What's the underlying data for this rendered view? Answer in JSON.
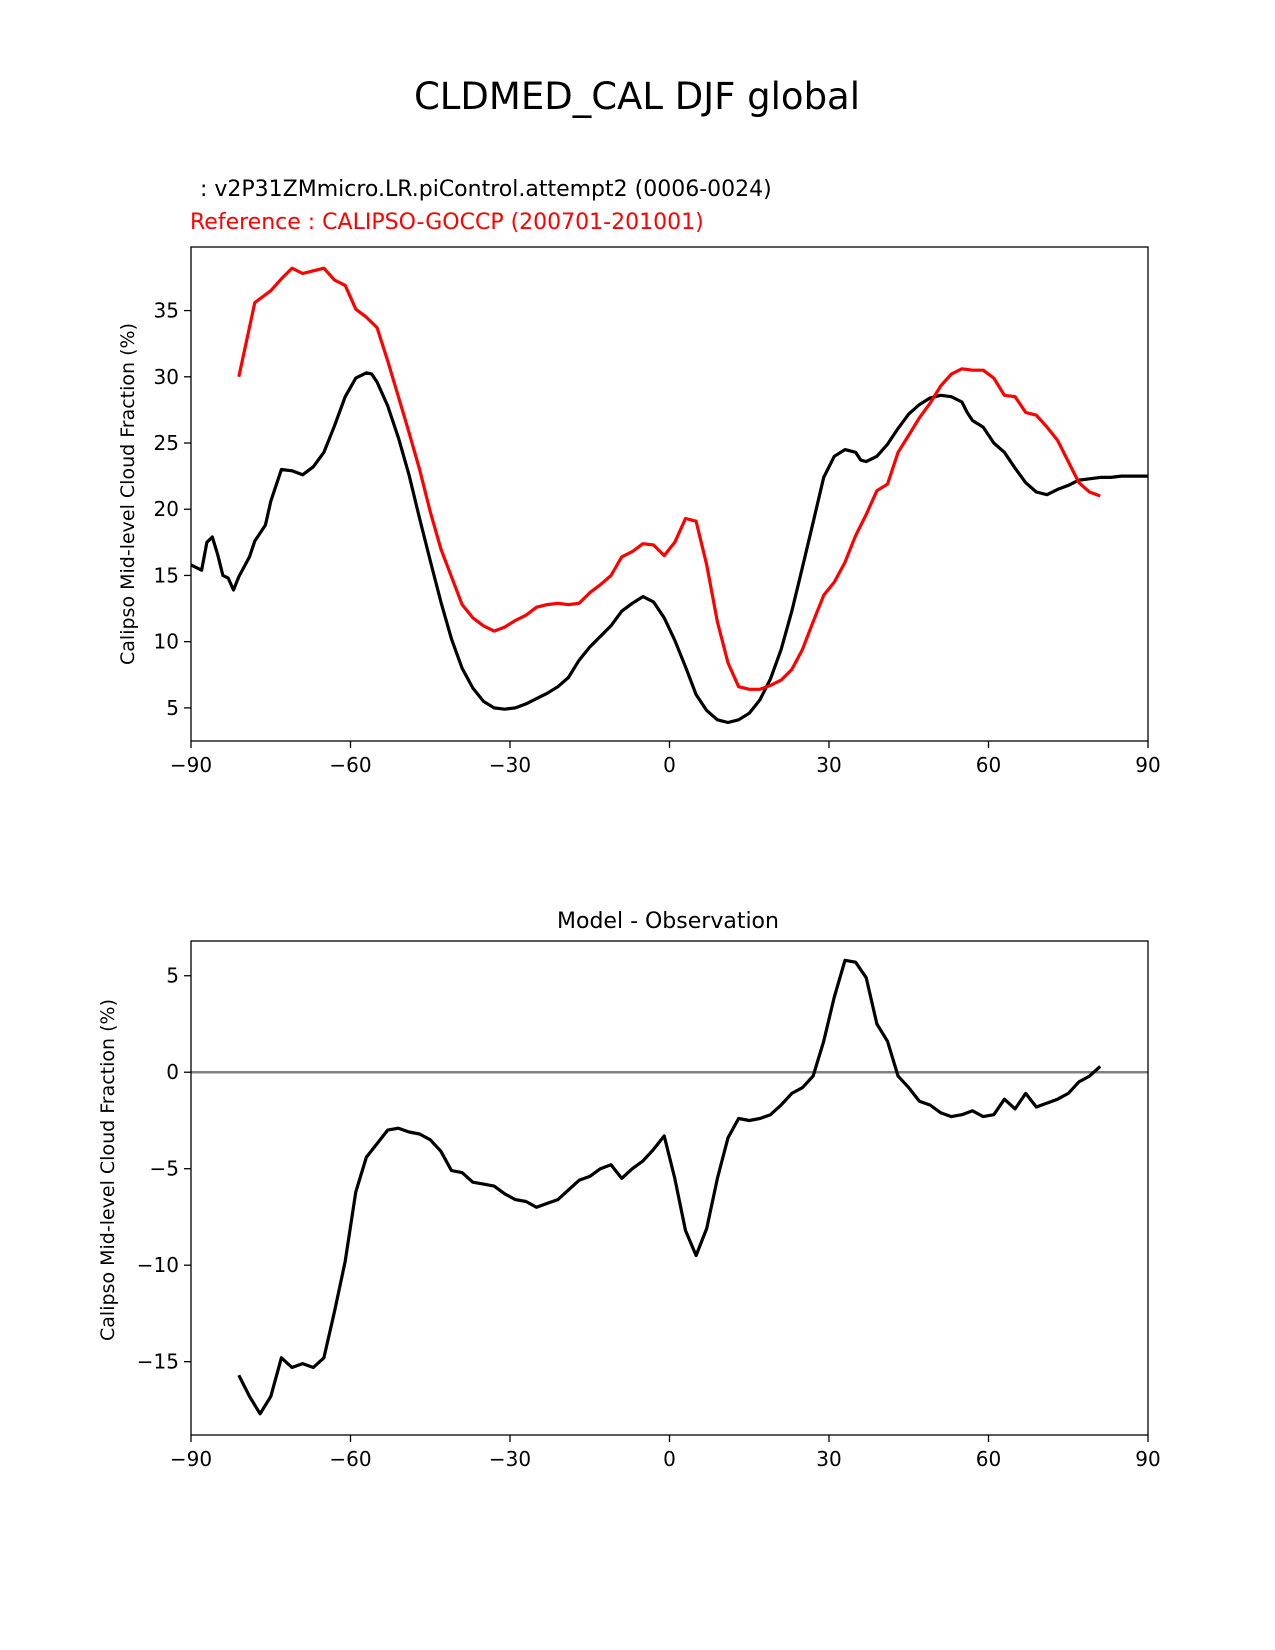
{
  "figure": {
    "title": "CLDMED_CAL DJF global"
  },
  "chart_data": [
    {
      "type": "line",
      "id": "top",
      "title": "",
      "subtitle_test": " : v2P31ZMmicro.LR.piControl.attempt2 (0006-0024)",
      "subtitle_ref": "Reference : CALIPSO-GOCCP (200701-201001)",
      "xlabel": "",
      "ylabel": "Calipso Mid-level Cloud Fraction (%)",
      "xlim": [
        -90,
        90
      ],
      "ylim": [
        2.5,
        39.8
      ],
      "xticks": [
        -90,
        -60,
        -30,
        0,
        30,
        60,
        90
      ],
      "xtick_labels": [
        "−90",
        "−60",
        "−30",
        "0",
        "30",
        "60",
        "90"
      ],
      "yticks": [
        5,
        10,
        15,
        20,
        25,
        30,
        35
      ],
      "ytick_labels": [
        "5",
        "10",
        "15",
        "20",
        "25",
        "30",
        "35"
      ],
      "series": [
        {
          "name": "test",
          "color": "#000000",
          "x": [
            -90,
            -88,
            -87,
            -86,
            -85,
            -84,
            -83,
            -82,
            -81,
            -79,
            -78,
            -76,
            -75,
            -73,
            -71,
            -69,
            -67,
            -65,
            -63,
            -61,
            -59,
            -57,
            -56,
            -55,
            -53,
            -51,
            -49,
            -47,
            -45,
            -43,
            -41,
            -39,
            -37,
            -35,
            -33,
            -31,
            -29,
            -27,
            -25,
            -23,
            -21,
            -19,
            -17,
            -15,
            -13,
            -11,
            -9,
            -7,
            -5,
            -3,
            -1,
            1,
            3,
            5,
            7,
            9,
            11,
            13,
            15,
            17,
            19,
            21,
            23,
            25,
            27,
            29,
            31,
            33,
            35,
            36,
            37,
            39,
            41,
            43,
            45,
            47,
            49,
            51,
            53,
            55,
            56,
            57,
            59,
            61,
            63,
            65,
            67,
            69,
            71,
            73,
            75,
            77,
            79,
            81,
            83,
            85,
            87,
            89,
            90
          ],
          "values": [
            15.8,
            15.4,
            17.5,
            17.9,
            16.6,
            15,
            14.8,
            13.9,
            14.9,
            16.4,
            17.6,
            18.8,
            20.6,
            23.0,
            22.9,
            22.6,
            23.2,
            24.3,
            26.3,
            28.5,
            29.9,
            30.3,
            30.2,
            29.6,
            27.8,
            25.4,
            22.6,
            19.3,
            16.1,
            13.0,
            10.2,
            8.0,
            6.5,
            5.5,
            5.0,
            4.9,
            5.0,
            5.3,
            5.7,
            6.1,
            6.6,
            7.3,
            8.6,
            9.6,
            10.4,
            11.2,
            12.3,
            12.9,
            13.4,
            13.0,
            11.8,
            10.1,
            8.1,
            6.0,
            4.8,
            4.1,
            3.9,
            4.1,
            4.6,
            5.6,
            7.2,
            9.4,
            12.3,
            15.6,
            19.0,
            22.4,
            24.0,
            24.5,
            24.3,
            23.7,
            23.6,
            24.0,
            24.9,
            26.1,
            27.2,
            27.9,
            28.4,
            28.6,
            28.5,
            28.1,
            27.3,
            26.7,
            26.2,
            25.0,
            24.3,
            23.1,
            22.0,
            21.3,
            21.1,
            21.5,
            21.8,
            22.2,
            22.3,
            22.4,
            22.4,
            22.5,
            22.5,
            22.5,
            22.5
          ]
        },
        {
          "name": "reference",
          "color": "#ff0000",
          "x": [
            -81,
            -78,
            -75,
            -73,
            -71,
            -69,
            -67,
            -65,
            -63,
            -61,
            -59,
            -57,
            -55,
            -53,
            -51,
            -49,
            -47,
            -45,
            -43,
            -41,
            -39,
            -37,
            -35,
            -33,
            -31,
            -29,
            -27,
            -25,
            -23,
            -21,
            -19,
            -17,
            -15,
            -13,
            -11,
            -9,
            -7,
            -5,
            -3,
            -1,
            1,
            3,
            5,
            7,
            9,
            11,
            13,
            15,
            17,
            19,
            21,
            23,
            25,
            27,
            29,
            31,
            33,
            35,
            37,
            39,
            41,
            43,
            45,
            47,
            49,
            51,
            53,
            55,
            57,
            59,
            61,
            63,
            65,
            67,
            69,
            71,
            73,
            75,
            77,
            79,
            81
          ],
          "values": [
            30.0,
            35.6,
            36.5,
            37.4,
            38.2,
            37.8,
            38.0,
            38.2,
            37.3,
            36.9,
            35.1,
            34.5,
            33.7,
            31.2,
            28.5,
            25.8,
            23.0,
            19.8,
            17.0,
            14.9,
            12.8,
            11.8,
            11.2,
            10.8,
            11.1,
            11.6,
            12.0,
            12.6,
            12.8,
            12.9,
            12.8,
            12.9,
            13.7,
            14.3,
            15.0,
            16.4,
            16.8,
            17.4,
            17.3,
            16.5,
            17.5,
            19.3,
            19.1,
            15.8,
            11.5,
            8.4,
            6.6,
            6.4,
            6.4,
            6.7,
            7.1,
            7.9,
            9.4,
            11.5,
            13.5,
            14.5,
            16.0,
            18.0,
            19.6,
            21.4,
            21.9,
            24.3,
            25.6,
            26.9,
            28.0,
            29.3,
            30.2,
            30.6,
            30.5,
            30.5,
            29.9,
            28.6,
            28.5,
            27.3,
            27.1,
            26.2,
            25.2,
            23.6,
            22.0,
            21.3,
            21.0
          ]
        }
      ]
    },
    {
      "type": "line",
      "id": "bottom",
      "title": "Model - Observation",
      "xlabel": "",
      "ylabel": "Calipso Mid-level Cloud Fraction (%)",
      "xlim": [
        -90,
        90
      ],
      "ylim": [
        -18.8,
        6.8
      ],
      "xticks": [
        -90,
        -60,
        -30,
        0,
        30,
        60,
        90
      ],
      "xtick_labels": [
        "−90",
        "−60",
        "−30",
        "0",
        "30",
        "60",
        "90"
      ],
      "yticks": [
        -15,
        -10,
        -5,
        0,
        5
      ],
      "ytick_labels": [
        "−15",
        "−10",
        "−5",
        "0",
        "5"
      ],
      "zero_line_color": "#808080",
      "series": [
        {
          "name": "difference",
          "color": "#000000",
          "x": [
            -81,
            -79,
            -77,
            -75,
            -73,
            -71,
            -69,
            -67,
            -65,
            -63,
            -61,
            -59,
            -57,
            -55,
            -53,
            -51,
            -49,
            -47,
            -45,
            -43,
            -41,
            -39,
            -37,
            -35,
            -33,
            -31,
            -29,
            -27,
            -25,
            -23,
            -21,
            -19,
            -17,
            -15,
            -13,
            -11,
            -9,
            -7,
            -5,
            -3,
            -1,
            1,
            3,
            5,
            7,
            9,
            11,
            13,
            15,
            17,
            19,
            21,
            23,
            25,
            27,
            29,
            31,
            33,
            35,
            37,
            39,
            41,
            43,
            45,
            47,
            49,
            51,
            53,
            55,
            57,
            59,
            61,
            63,
            65,
            67,
            69,
            71,
            73,
            75,
            77,
            79,
            81
          ],
          "values": [
            -15.7,
            -16.8,
            -17.7,
            -16.8,
            -14.8,
            -15.3,
            -15.1,
            -15.3,
            -14.8,
            -12.4,
            -9.8,
            -6.2,
            -4.4,
            -3.7,
            -3.0,
            -2.9,
            -3.1,
            -3.2,
            -3.5,
            -4.1,
            -5.1,
            -5.2,
            -5.7,
            -5.8,
            -5.9,
            -6.3,
            -6.6,
            -6.7,
            -7.0,
            -6.8,
            -6.6,
            -6.1,
            -5.6,
            -5.4,
            -5.0,
            -4.8,
            -5.5,
            -5.0,
            -4.6,
            -4.0,
            -3.3,
            -5.5,
            -8.2,
            -9.5,
            -8.1,
            -5.5,
            -3.4,
            -2.4,
            -2.5,
            -2.4,
            -2.2,
            -1.7,
            -1.1,
            -0.8,
            -0.2,
            1.6,
            3.9,
            5.8,
            5.7,
            4.9,
            2.5,
            1.6,
            -0.2,
            -0.8,
            -1.5,
            -1.7,
            -2.1,
            -2.3,
            -2.2,
            -2.0,
            -2.3,
            -2.2,
            -1.4,
            -1.9,
            -1.1,
            -1.8,
            -1.6,
            -1.4,
            -1.1,
            -0.5,
            -0.2,
            0.3
          ]
        }
      ]
    }
  ]
}
